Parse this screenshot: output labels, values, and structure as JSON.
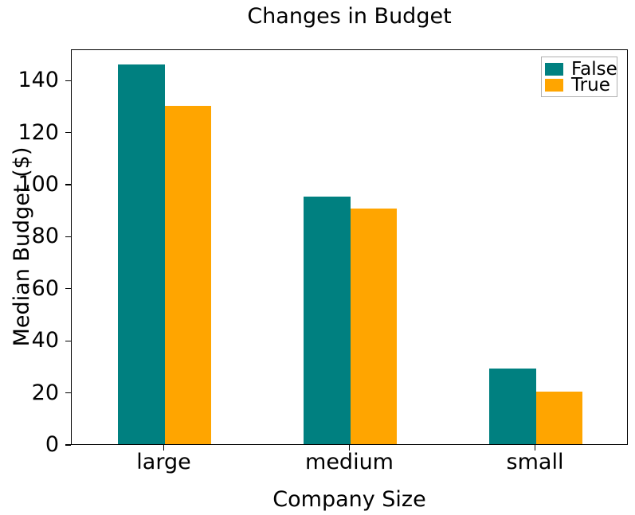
{
  "title": "Changes in Budget",
  "chart_data": {
    "type": "bar",
    "title": "Changes in Budget",
    "xlabel": "Company Size",
    "ylabel": "Median Budget ($)",
    "categories": [
      "large",
      "medium",
      "small"
    ],
    "series": [
      {
        "name": "False",
        "color": "#008080",
        "values": [
          146,
          95,
          29
        ]
      },
      {
        "name": "True",
        "color": "#ffa500",
        "values": [
          130,
          90.5,
          20.3
        ]
      }
    ],
    "ylim": [
      0,
      152
    ],
    "yticks": [
      0,
      20,
      40,
      60,
      80,
      100,
      120,
      140
    ],
    "grid": false,
    "legend_position": "upper right",
    "bar_width_fraction": 0.25,
    "colors": {
      "frame": "#000000",
      "legend_border": "#b0b0b0",
      "background": "#ffffff"
    }
  }
}
